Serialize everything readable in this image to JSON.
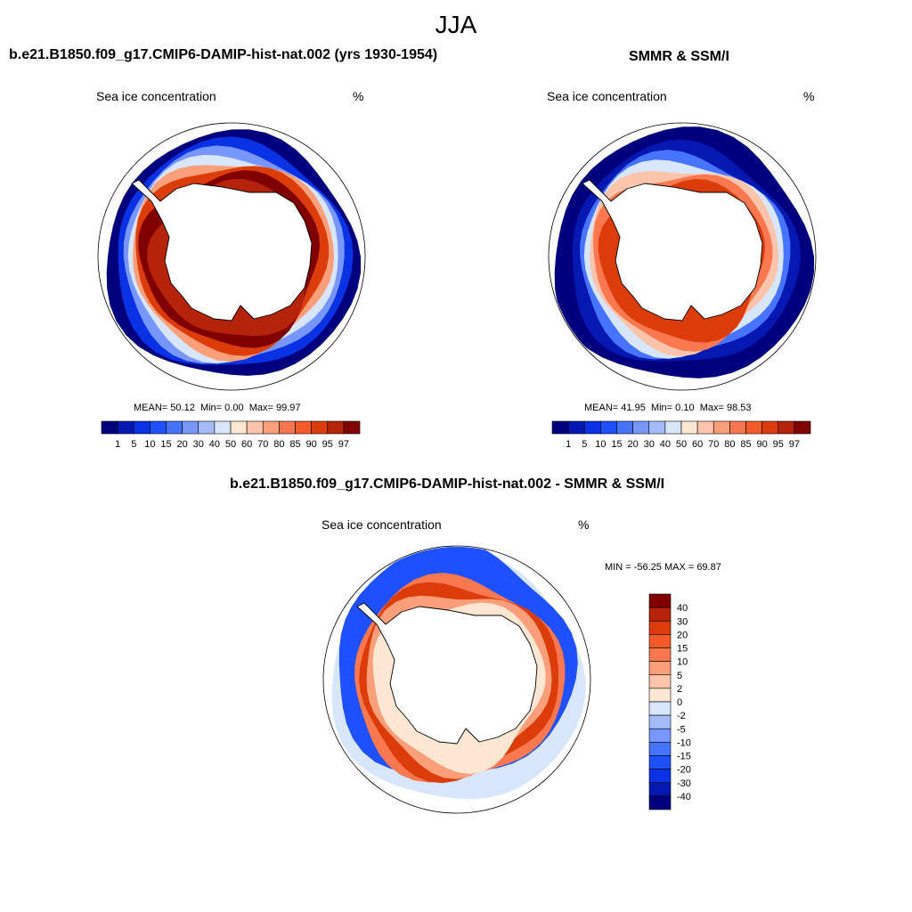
{
  "figure_title": "JJA",
  "chart_data": [
    {
      "type": "heatmap",
      "projection": "south-polar-stereographic",
      "title": "b.e21.B1850.f09_g17.CMIP6-DAMIP-hist-nat.002 (yrs 1930-1954)",
      "variable": "Sea ice concentration",
      "units": "%",
      "stats": {
        "mean_label": "MEAN=",
        "mean": "50.12",
        "min_label": "Min=",
        "min": "0.00",
        "max_label": "Max=",
        "max": "99.97"
      },
      "colorbar": {
        "orientation": "horizontal",
        "levels": [
          "1",
          "5",
          "10",
          "15",
          "20",
          "30",
          "40",
          "50",
          "60",
          "70",
          "80",
          "85",
          "90",
          "95",
          "97"
        ],
        "colors": [
          "#00007f",
          "#0519b2",
          "#0a32e5",
          "#1e50ff",
          "#4673ff",
          "#7896ff",
          "#a5bcfa",
          "#d7e6fa",
          "#fde6d2",
          "#fcc4aa",
          "#fb9e7a",
          "#fa7850",
          "#f55a28",
          "#dc3c0a",
          "#b4230a",
          "#800000"
        ]
      }
    },
    {
      "type": "heatmap",
      "projection": "south-polar-stereographic",
      "title": "SMMR & SSM/I",
      "variable": "Sea ice concentration",
      "units": "%",
      "stats": {
        "mean_label": "MEAN=",
        "mean": "41.95",
        "min_label": "Min=",
        "min": "0.10",
        "max_label": "Max=",
        "max": "98.53"
      },
      "colorbar": {
        "orientation": "horizontal",
        "levels": [
          "1",
          "5",
          "10",
          "15",
          "20",
          "30",
          "40",
          "50",
          "60",
          "70",
          "80",
          "85",
          "90",
          "95",
          "97"
        ],
        "colors": [
          "#00007f",
          "#0519b2",
          "#0a32e5",
          "#1e50ff",
          "#4673ff",
          "#7896ff",
          "#a5bcfa",
          "#d7e6fa",
          "#fde6d2",
          "#fcc4aa",
          "#fb9e7a",
          "#fa7850",
          "#f55a28",
          "#dc3c0a",
          "#b4230a",
          "#800000"
        ]
      }
    },
    {
      "type": "heatmap",
      "projection": "south-polar-stereographic",
      "title": "b.e21.B1850.f09_g17.CMIP6-DAMIP-hist-nat.002 - SMMR & SSM/I",
      "variable": "Sea ice concentration",
      "units": "%",
      "minmax_text": "MIN = -56.25 MAX =  69.87",
      "colorbar": {
        "orientation": "vertical",
        "levels": [
          "40",
          "30",
          "20",
          "15",
          "10",
          "5",
          "2",
          "0",
          "-2",
          "-5",
          "-10",
          "-15",
          "-20",
          "-30",
          "-40"
        ],
        "colors": [
          "#800000",
          "#b4230a",
          "#dc3c0a",
          "#f55a28",
          "#fa7850",
          "#fb9e7a",
          "#fcc4aa",
          "#fde6d2",
          "#d7e6fa",
          "#a5bcfa",
          "#7896ff",
          "#4673ff",
          "#1e50ff",
          "#0a32e5",
          "#0519b2",
          "#00007f"
        ]
      }
    }
  ]
}
